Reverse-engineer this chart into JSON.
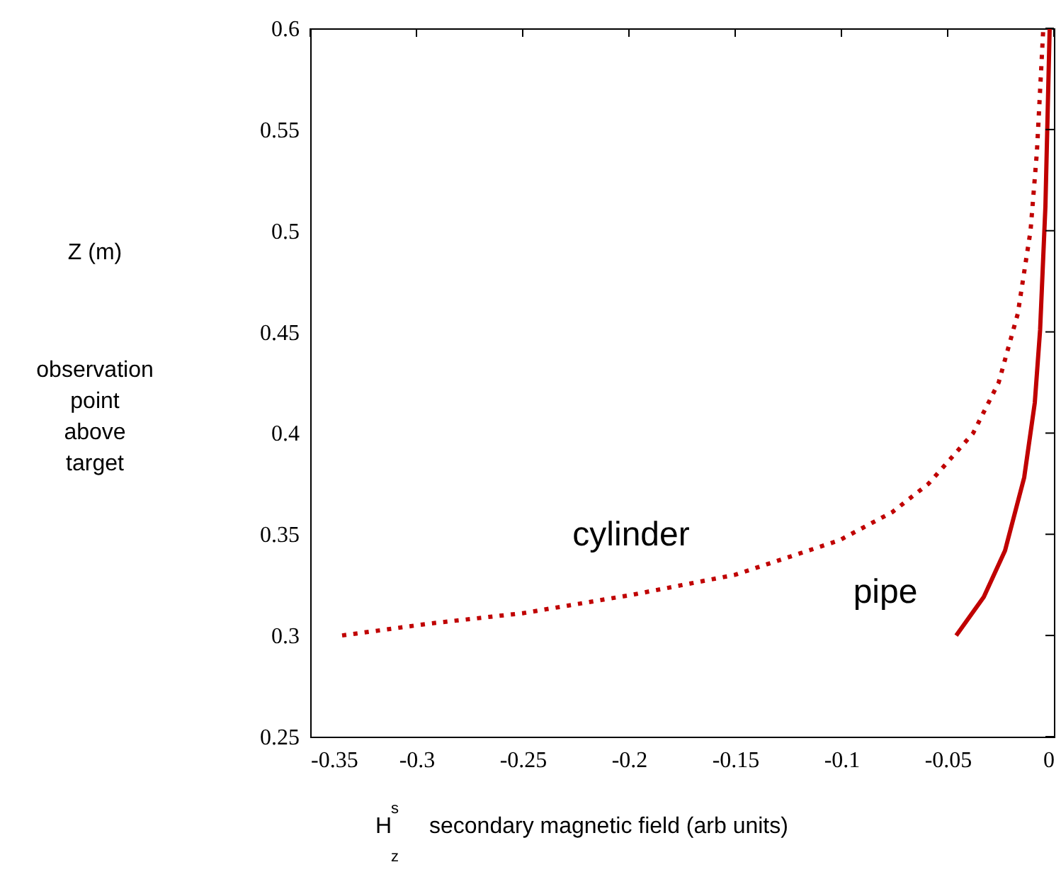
{
  "chart_data": {
    "type": "line",
    "xlabel": "H$^{s}$$_{z}$   secondary magnetic field  (arb units)",
    "annotations": [
      "Z  (m)",
      "observation point above target"
    ],
    "xlim": [
      -0.35,
      0
    ],
    "xticks": [
      -0.35,
      -0.3,
      -0.25,
      -0.2,
      -0.15,
      -0.1,
      -0.05,
      0
    ],
    "ylim": [
      0.25,
      0.6
    ],
    "yticks": [
      0.25,
      0.3,
      0.35,
      0.4,
      0.45,
      0.5,
      0.55,
      0.6
    ],
    "grid": false,
    "marker": "none",
    "series": [
      {
        "name": "cylinder",
        "color": "#c00000",
        "line_style": "dotted",
        "x": [
          -0.335,
          -0.293,
          -0.25,
          -0.199,
          -0.15,
          -0.101,
          -0.076,
          -0.059,
          -0.038,
          -0.026,
          -0.017,
          -0.011,
          -0.008,
          -0.005
        ],
        "values": [
          0.3,
          0.306,
          0.311,
          0.32,
          0.33,
          0.347,
          0.361,
          0.375,
          0.4,
          0.425,
          0.459,
          0.5,
          0.539,
          0.6
        ]
      },
      {
        "name": "pipe",
        "color": "#c00000",
        "line_style": "solid",
        "x": [
          -0.046,
          -0.033,
          -0.023,
          -0.014,
          -0.009,
          -0.0065,
          -0.004,
          -0.002
        ],
        "values": [
          0.3,
          0.319,
          0.342,
          0.378,
          0.415,
          0.451,
          0.512,
          0.6
        ]
      }
    ]
  }
}
